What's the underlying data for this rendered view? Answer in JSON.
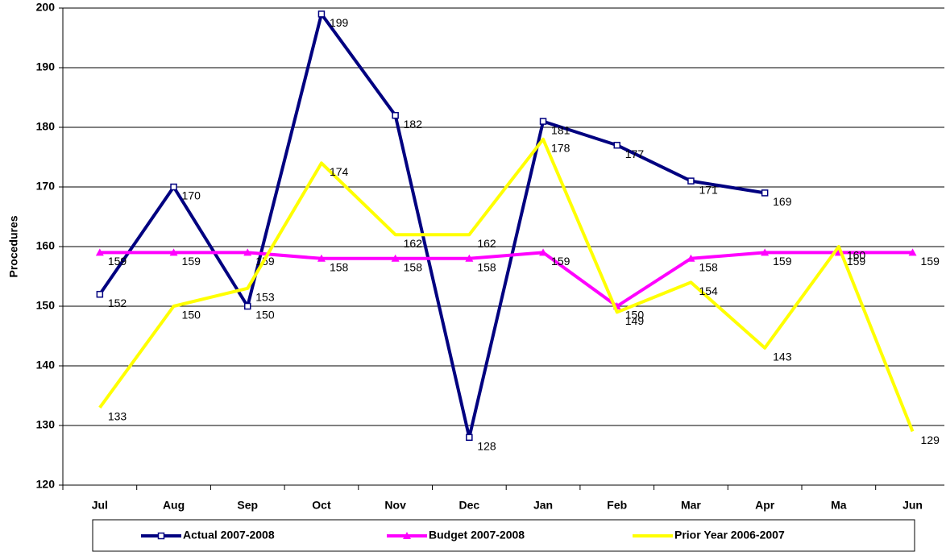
{
  "chart_data": {
    "type": "line",
    "y_label": "Procedures",
    "categories": [
      "Jul",
      "Aug",
      "Sep",
      "Oct",
      "Nov",
      "Dec",
      "Jan",
      "Feb",
      "Mar",
      "Apr",
      "Ma",
      "Jun"
    ],
    "series": [
      {
        "name": "Actual 2007-2008",
        "color": "#000080",
        "marker": "square",
        "values": [
          152,
          170,
          150,
          199,
          182,
          128,
          181,
          177,
          171,
          169,
          null,
          null
        ]
      },
      {
        "name": "Budget 2007-2008",
        "color": "#ff00ff",
        "marker": "triangle",
        "values": [
          159,
          159,
          159,
          158,
          158,
          158,
          159,
          150,
          158,
          159,
          159,
          159
        ]
      },
      {
        "name": "Prior Year 2006-2007",
        "color": "#ffff00",
        "marker": "none",
        "values": [
          133,
          150,
          153,
          174,
          162,
          162,
          178,
          149,
          154,
          143,
          160,
          129
        ]
      }
    ],
    "ylim": [
      120,
      200
    ],
    "yticks": [
      120,
      130,
      140,
      150,
      160,
      170,
      180,
      190,
      200
    ],
    "grid": true,
    "legend": "bottom"
  }
}
